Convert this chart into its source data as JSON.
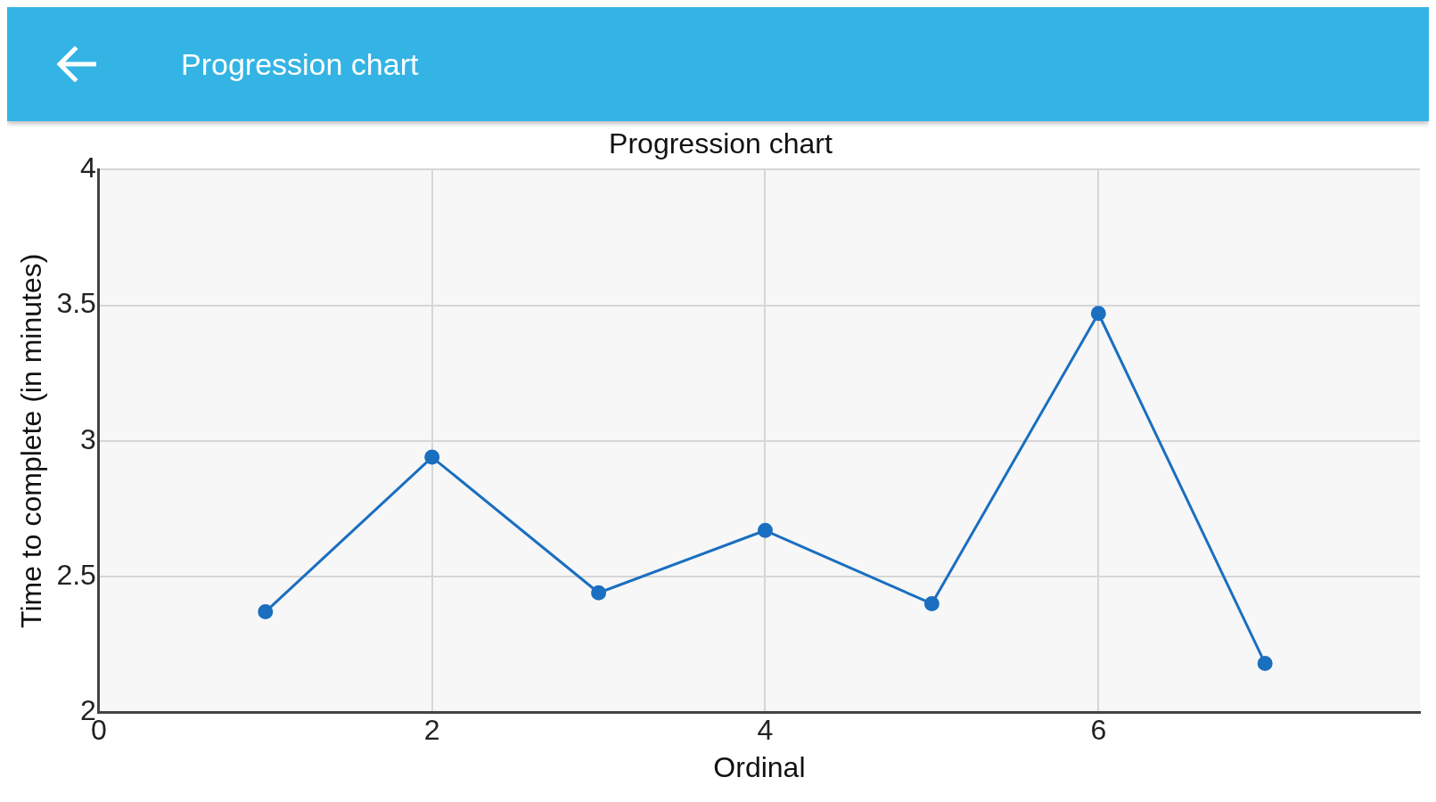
{
  "chart_data": {
    "type": "line",
    "title": "Progression chart",
    "annotations": [
      "Progression chart"
    ],
    "xlabel": "Ordinal",
    "ylabel": "Time to complete (in minutes)",
    "x": [
      1,
      2,
      3,
      4,
      5,
      6,
      7
    ],
    "series": [
      {
        "color": "#1a6fc0",
        "values": [
          2.37,
          2.94,
          2.44,
          2.67,
          2.4,
          3.47,
          2.18
        ]
      }
    ],
    "xlim": [
      0,
      7.93
    ],
    "xticks": [
      0,
      2,
      4,
      6
    ],
    "ylim": [
      2,
      4
    ],
    "yticks": [
      2,
      2.5,
      3,
      3.5,
      4
    ],
    "grid": true,
    "legend": false,
    "marker": "circle",
    "line_style": "solid"
  }
}
